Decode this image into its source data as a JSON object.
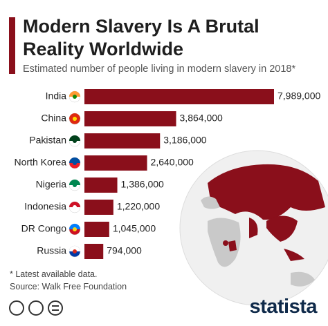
{
  "chart_data": {
    "type": "bar",
    "orientation": "horizontal",
    "title": "Modern Slavery Is A Brutal Reality Worldwide",
    "subtitle": "Estimated number of people living in modern slavery in 2018*",
    "categories": [
      "India",
      "China",
      "Pakistan",
      "North Korea",
      "Nigeria",
      "Indonesia",
      "DR Congo",
      "Russia"
    ],
    "values": [
      7989000,
      3864000,
      3186000,
      2640000,
      1386000,
      1220000,
      1045000,
      794000
    ],
    "value_labels": [
      "7,989,000",
      "3,864,000",
      "3,186,000",
      "2,640,000",
      "1,386,000",
      "1,220,000",
      "1,045,000",
      "794,000"
    ],
    "color": "#8a0f1b",
    "note": "* Latest available data.",
    "source": "Source: Walk Free Foundation",
    "brand": "statista"
  }
}
